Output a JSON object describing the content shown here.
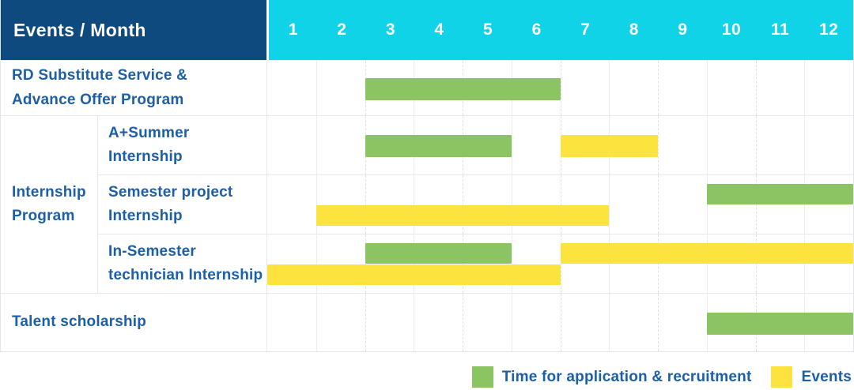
{
  "colors": {
    "header_bg": "#0e4a7e",
    "months_bg": "#10d3e8",
    "green": "#8cc464",
    "yellow": "#fde33d",
    "label_text": "#1d5fa6"
  },
  "chart_data": {
    "type": "bar",
    "subtype": "gantt",
    "title": "Events / Month",
    "xlabel": "Month",
    "x_ticks": [
      "1",
      "2",
      "3",
      "4",
      "5",
      "6",
      "7",
      "8",
      "9",
      "10",
      "11",
      "12"
    ],
    "x_range": [
      1,
      12
    ],
    "grid": true,
    "legend_position": "bottom-right",
    "legend": [
      {
        "name": "Time for application & recruitment",
        "color": "#8cc464"
      },
      {
        "name": "Events",
        "color": "#fde33d"
      }
    ],
    "groups": {
      "Internship Program": {
        "label_lines": [
          "Internship",
          "Program"
        ]
      }
    },
    "rows": [
      {
        "label": "RD Substitute Service & Advance Offer Program",
        "label_lines": [
          "RD Substitute Service &",
          "Advance Offer Program"
        ],
        "group": "",
        "spans": [
          {
            "series": "Time for application & recruitment",
            "start_month": 3,
            "end_month": 6,
            "lane": "middle"
          }
        ]
      },
      {
        "label": "A+Summer Internship",
        "label_lines": [
          "A+Summer",
          "Internship"
        ],
        "group": "Internship Program",
        "spans": [
          {
            "series": "Time for application & recruitment",
            "start_month": 3,
            "end_month": 5,
            "lane": "middle"
          },
          {
            "series": "Events",
            "start_month": 7,
            "end_month": 8,
            "lane": "middle"
          }
        ]
      },
      {
        "label": "Semester project Internship",
        "label_lines": [
          "Semester project",
          "Internship"
        ],
        "group": "Internship Program",
        "spans": [
          {
            "series": "Time for application & recruitment",
            "start_month": 10,
            "end_month": 12,
            "lane": "top"
          },
          {
            "series": "Events",
            "start_month": 2,
            "end_month": 7,
            "lane": "bottom"
          }
        ]
      },
      {
        "label": "In-Semester technician Internship",
        "label_lines": [
          "In-Semester",
          "technician Internship"
        ],
        "group": "Internship Program",
        "spans": [
          {
            "series": "Time for application & recruitment",
            "start_month": 3,
            "end_month": 5,
            "lane": "top"
          },
          {
            "series": "Events",
            "start_month": 7,
            "end_month": 12,
            "lane": "top"
          },
          {
            "series": "Events",
            "start_month": 1,
            "end_month": 6,
            "lane": "bottom"
          }
        ]
      },
      {
        "label": "Talent scholarship",
        "label_lines": [
          "Talent scholarship"
        ],
        "group": "",
        "spans": [
          {
            "series": "Time for application & recruitment",
            "start_month": 10,
            "end_month": 12,
            "lane": "middle"
          }
        ]
      }
    ]
  }
}
